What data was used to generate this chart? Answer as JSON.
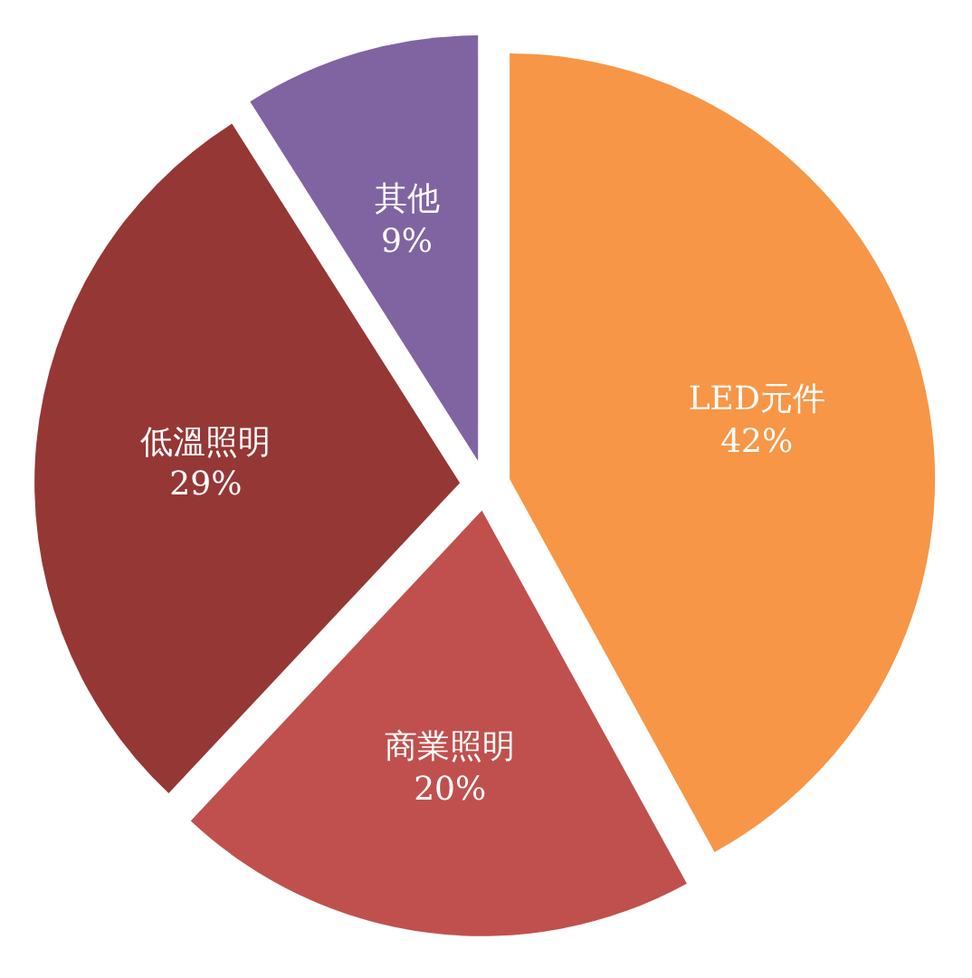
{
  "chart_data": {
    "type": "pie",
    "categories": [
      "LED元件",
      "商業照明",
      "低溫照明",
      "其他"
    ],
    "values": [
      42,
      20,
      29,
      9
    ],
    "colors": [
      "#f79646",
      "#c0504d",
      "#953735",
      "#8064a2"
    ],
    "value_labels": [
      "42%",
      "20%",
      "29%",
      "9%"
    ],
    "legend": false
  }
}
